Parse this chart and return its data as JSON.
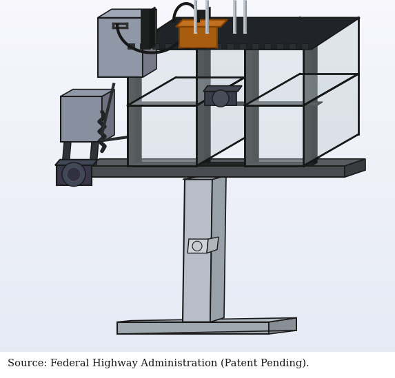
{
  "caption": "Source: Federal Highway Administration (Patent Pending).",
  "caption_fontsize": 10.5,
  "caption_color": "#1a1a1a",
  "fig_width": 5.73,
  "fig_height": 5.49,
  "dpi": 100,
  "bg_color": "#ffffff",
  "border_color": "#cccccc",
  "grad_colors": [
    "#f0f2f5",
    "#d8dce6",
    "#e8ebf0"
  ],
  "dark": "#1a1a1a",
  "frame_color": "#1e2020",
  "frame_side": "#161818",
  "glass_color": "#d0d8e0",
  "glass_alpha": 0.45,
  "pole_color": "#b8bec6",
  "pole_side": "#98a0a8",
  "base_color": "#a8aeb6",
  "platform_color": "#484c50",
  "platform_side": "#383c40",
  "box_color": "#c5cdd5",
  "motor_orange": "#c07020",
  "motor_orange2": "#a85c10",
  "cb_color": "#8890a0",
  "pump_color": "#505870"
}
